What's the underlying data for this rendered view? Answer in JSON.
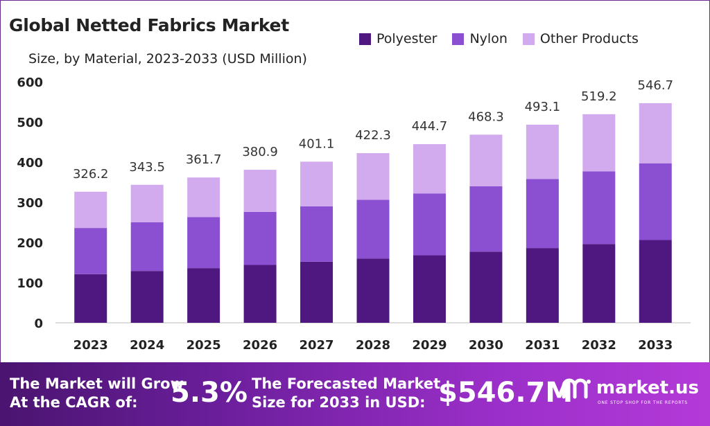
{
  "header": {
    "title": "Global Netted Fabrics Market",
    "subtitle": "Size, by Material, 2023-2033 (USD Million)"
  },
  "colors": {
    "Polyester": "#4e1880",
    "Nylon": "#8b4fd1",
    "Other Products": "#d2abee",
    "banner_start": "#4a1470",
    "banner_end": "#b43ad8"
  },
  "chart_data": {
    "type": "bar",
    "stacked": true,
    "categories": [
      "2023",
      "2024",
      "2025",
      "2026",
      "2027",
      "2028",
      "2029",
      "2030",
      "2031",
      "2032",
      "2033"
    ],
    "series": [
      {
        "name": "Polyester",
        "values": [
          121,
          129,
          136,
          144,
          152,
          160,
          168,
          177,
          186,
          196,
          206
        ]
      },
      {
        "name": "Nylon",
        "values": [
          115,
          121,
          127,
          132,
          138,
          146,
          154,
          163,
          172,
          181,
          191
        ]
      },
      {
        "name": "Other Products",
        "values": [
          90.2,
          93.5,
          98.7,
          104.9,
          111.1,
          116.3,
          122.7,
          128.3,
          135.1,
          142.2,
          149.7
        ]
      }
    ],
    "totals": [
      326.2,
      343.5,
      361.7,
      380.9,
      401.1,
      422.3,
      444.7,
      468.3,
      493.1,
      519.2,
      546.7
    ],
    "total_labels": [
      "326.2",
      "343.5",
      "361.7",
      "380.9",
      "401.1",
      "422.3",
      "444.7",
      "468.3",
      "493.1",
      "519.2",
      "546.7"
    ],
    "ylim": [
      0,
      600
    ],
    "yticks": [
      0,
      100,
      200,
      300,
      400,
      500,
      600
    ],
    "ytick_labels": [
      "0",
      "100",
      "200",
      "300",
      "400",
      "500",
      "600"
    ],
    "xlabel": "",
    "ylabel": "",
    "grid": false,
    "legend_position": "top-right"
  },
  "banner": {
    "cagr_text_line1": "The Market will Grow",
    "cagr_text_line2": "At the CAGR of:",
    "cagr_value": "5.3%",
    "forecast_text_line1": "The Forecasted Market",
    "forecast_text_line2": "Size for 2033 in USD:",
    "forecast_value": "$546.7M",
    "brand_name": "market.us",
    "brand_tagline": "ONE STOP SHOP FOR THE REPORTS"
  }
}
